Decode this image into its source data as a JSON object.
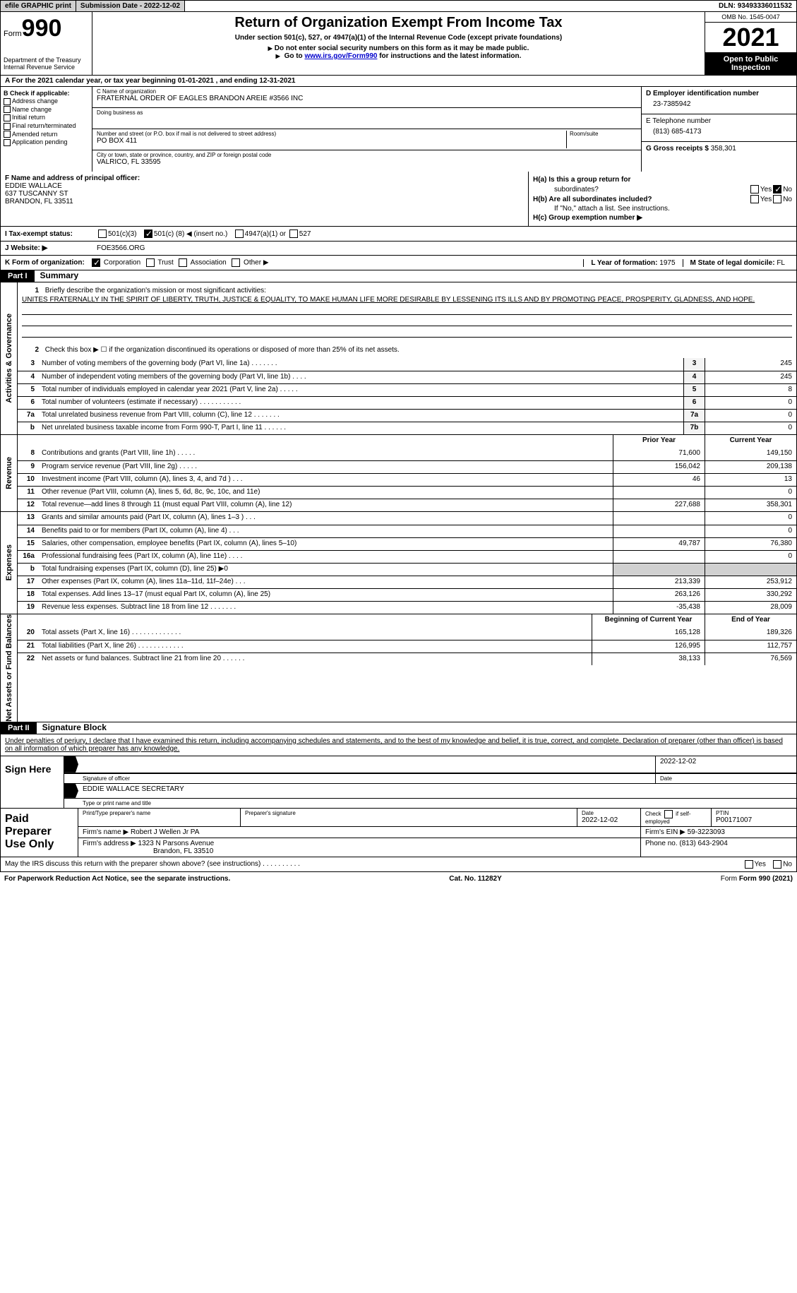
{
  "topbar": {
    "efile": "efile GRAPHIC print",
    "sub_label": "Submission Date - ",
    "sub_date": "2022-12-02",
    "dln_label": "DLN: ",
    "dln": "93493336011532"
  },
  "header": {
    "form_word": "Form",
    "form_num": "990",
    "dept": "Department of the Treasury\nInternal Revenue Service",
    "title": "Return of Organization Exempt From Income Tax",
    "sub": "Under section 501(c), 527, or 4947(a)(1) of the Internal Revenue Code (except private foundations)",
    "note1": "Do not enter social security numbers on this form as it may be made public.",
    "note2_a": "Go to ",
    "note2_link": "www.irs.gov/Form990",
    "note2_b": " for instructions and the latest information.",
    "omb": "OMB No. 1545-0047",
    "year": "2021",
    "inspect": "Open to Public Inspection"
  },
  "line_a": {
    "prefix": "A   For the 2021 calendar year, or tax year beginning ",
    "begin": "01-01-2021",
    "mid": "   , and ending ",
    "end": "12-31-2021"
  },
  "box_b": {
    "title": "B Check if applicable:",
    "opts": [
      "Address change",
      "Name change",
      "Initial return",
      "Final return/terminated",
      "Amended return",
      "Application pending"
    ]
  },
  "box_c": {
    "name_label": "C Name of organization",
    "name": "FRATERNAL ORDER OF EAGLES BRANDON AREIE #3566 INC",
    "dba_label": "Doing business as",
    "addr_label": "Number and street (or P.O. box if mail is not delivered to street address)",
    "room_label": "Room/suite",
    "addr": "PO BOX 411",
    "city_label": "City or town, state or province, country, and ZIP or foreign postal code",
    "city": "VALRICO, FL  33595"
  },
  "box_d": {
    "ein_label": "D Employer identification number",
    "ein": "23-7385942",
    "tel_label": "E Telephone number",
    "tel": "(813) 685-4173",
    "gross_label": "G Gross receipts $ ",
    "gross": "358,301"
  },
  "box_f": {
    "label": "F  Name and address of principal officer:",
    "name": "EDDIE WALLACE",
    "addr1": "637 TUSCANNY ST",
    "addr2": "BRANDON, FL  33511"
  },
  "box_h": {
    "a1": "H(a)  Is this a group return for",
    "a2": "subordinates?",
    "b1": "H(b)  Are all subordinates included?",
    "b2": "If \"No,\" attach a list. See instructions.",
    "c": "H(c)  Group exemption number ▶",
    "yes": "Yes",
    "no": "No"
  },
  "line_i": {
    "label": "I    Tax-exempt status:",
    "o1": "501(c)(3)",
    "o2a": "501(c) ( ",
    "o2n": "8",
    "o2b": " ) ◀ (insert no.)",
    "o3": "4947(a)(1) or",
    "o4": "527"
  },
  "line_j": {
    "label": "J   Website: ▶",
    "val": "FOE3566.ORG"
  },
  "line_k": {
    "label": "K Form of organization:",
    "opts": [
      "Corporation",
      "Trust",
      "Association",
      "Other ▶"
    ],
    "l_label": "L Year of formation: ",
    "l_val": "1975",
    "m_label": "M State of legal domicile: ",
    "m_val": "FL"
  },
  "parts": {
    "p1": "Part I",
    "p1_title": "Summary",
    "p2": "Part II",
    "p2_title": "Signature Block"
  },
  "vlabels": {
    "gov": "Activities & Governance",
    "rev": "Revenue",
    "exp": "Expenses",
    "net": "Net Assets or Fund Balances"
  },
  "summary": {
    "q1": "Briefly describe the organization's mission or most significant activities:",
    "mission": "UNITES FRATERNALLY IN THE SPIRIT OF LIBERTY, TRUTH, JUSTICE & EQUALITY, TO MAKE HUMAN LIFE MORE DESIRABLE BY LESSENING ITS ILLS AND BY PROMOTING PEACE, PROSPERITY, GLADNESS, AND HOPE.",
    "q2": "Check this box ▶ ☐  if the organization discontinued its operations or disposed of more than 25% of its net assets.",
    "rows_gov": [
      {
        "n": "3",
        "t": "Number of voting members of the governing body (Part VI, line 1a)   .    .    .    .    .    .    .",
        "b": "3",
        "v": "245"
      },
      {
        "n": "4",
        "t": "Number of independent voting members of the governing body (Part VI, line 1b)   .    .    .    .",
        "b": "4",
        "v": "245"
      },
      {
        "n": "5",
        "t": "Total number of individuals employed in calendar year 2021 (Part V, line 2a)    .    .    .    .    .",
        "b": "5",
        "v": "8"
      },
      {
        "n": "6",
        "t": "Total number of volunteers (estimate if necessary)    .    .    .    .    .    .    .    .    .    .    .",
        "b": "6",
        "v": "0"
      },
      {
        "n": "7a",
        "t": "Total unrelated business revenue from Part VIII, column (C), line 12    .    .    .    .    .    .    .",
        "b": "7a",
        "v": "0"
      },
      {
        "n": "b",
        "t": "Net unrelated business taxable income from Form 990-T, Part I, line 11   .    .    .    .    .    .",
        "b": "7b",
        "v": "0"
      }
    ],
    "hdr_prior": "Prior Year",
    "hdr_curr": "Current Year",
    "hdr_begin": "Beginning of Current Year",
    "hdr_end": "End of Year",
    "rows_rev": [
      {
        "n": "8",
        "t": "Contributions and grants (Part VIII, line 1h)   .    .    .    .    .",
        "p": "71,600",
        "c": "149,150"
      },
      {
        "n": "9",
        "t": "Program service revenue (Part VIII, line 2g)   .    .    .    .    .",
        "p": "156,042",
        "c": "209,138"
      },
      {
        "n": "10",
        "t": "Investment income (Part VIII, column (A), lines 3, 4, and 7d )   .    .    .",
        "p": "46",
        "c": "13"
      },
      {
        "n": "11",
        "t": "Other revenue (Part VIII, column (A), lines 5, 6d, 8c, 9c, 10c, and 11e)",
        "p": "",
        "c": "0"
      },
      {
        "n": "12",
        "t": "Total revenue—add lines 8 through 11 (must equal Part VIII, column (A), line 12)",
        "p": "227,688",
        "c": "358,301"
      }
    ],
    "rows_exp": [
      {
        "n": "13",
        "t": "Grants and similar amounts paid (Part IX, column (A), lines 1–3 )   .    .    .",
        "p": "",
        "c": "0"
      },
      {
        "n": "14",
        "t": "Benefits paid to or for members (Part IX, column (A), line 4)   .    .    .",
        "p": "",
        "c": "0"
      },
      {
        "n": "15",
        "t": "Salaries, other compensation, employee benefits (Part IX, column (A), lines 5–10)",
        "p": "49,787",
        "c": "76,380"
      },
      {
        "n": "16a",
        "t": "Professional fundraising fees (Part IX, column (A), line 11e)   .    .    .    .",
        "p": "",
        "c": "0"
      },
      {
        "n": "b",
        "t": "Total fundraising expenses (Part IX, column (D), line 25) ▶0",
        "p": "gray",
        "c": "gray"
      },
      {
        "n": "17",
        "t": "Other expenses (Part IX, column (A), lines 11a–11d, 11f–24e)   .    .    .",
        "p": "213,339",
        "c": "253,912"
      },
      {
        "n": "18",
        "t": "Total expenses. Add lines 13–17 (must equal Part IX, column (A), line 25)",
        "p": "263,126",
        "c": "330,292"
      },
      {
        "n": "19",
        "t": "Revenue less expenses. Subtract line 18 from line 12   .    .    .    .    .    .    .",
        "p": "-35,438",
        "c": "28,009"
      }
    ],
    "rows_net": [
      {
        "n": "20",
        "t": "Total assets (Part X, line 16)   .    .    .    .    .    .    .    .    .    .    .    .    .",
        "p": "165,128",
        "c": "189,326"
      },
      {
        "n": "21",
        "t": "Total liabilities (Part X, line 26)   .    .    .    .    .    .    .    .    .    .    .    .",
        "p": "126,995",
        "c": "112,757"
      },
      {
        "n": "22",
        "t": "Net assets or fund balances. Subtract line 21 from line 20   .    .    .    .    .    .",
        "p": "38,133",
        "c": "76,569"
      }
    ]
  },
  "sig": {
    "decl": "Under penalties of perjury, I declare that I have examined this return, including accompanying schedules and statements, and to the best of my knowledge and belief, it is true, correct, and complete. Declaration of preparer (other than officer) is based on all information of which preparer has any knowledge.",
    "sign_here": "Sign Here",
    "sig_officer": "Signature of officer",
    "sig_date": "2022-12-02",
    "date_label": "Date",
    "name_title": "EDDIE WALLACE  SECRETARY",
    "name_title_label": "Type or print name and title"
  },
  "prep": {
    "title": "Paid Preparer Use Only",
    "h1": "Print/Type preparer's name",
    "h2": "Preparer's signature",
    "h3": "Date",
    "h3v": "2022-12-02",
    "h4a": "Check",
    "h4b": "if self-employed",
    "h5": "PTIN",
    "h5v": "P00171007",
    "firm_name_label": "Firm's name      ▶",
    "firm_name": "Robert J Wellen Jr PA",
    "firm_ein_label": "Firm's EIN ▶",
    "firm_ein": "59-3223093",
    "firm_addr_label": "Firm's address ▶",
    "firm_addr1": "1323 N Parsons Avenue",
    "firm_addr2": "Brandon, FL  33510",
    "phone_label": "Phone no. ",
    "phone": "(813) 643-2904"
  },
  "footer": {
    "discuss": "May the IRS discuss this return with the preparer shown above? (see instructions)   .    .    .    .    .    .    .    .    .    .",
    "yes": "Yes",
    "no": "No",
    "pra": "For Paperwork Reduction Act Notice, see the separate instructions.",
    "cat": "Cat. No. 11282Y",
    "form": "Form 990 (2021)"
  }
}
